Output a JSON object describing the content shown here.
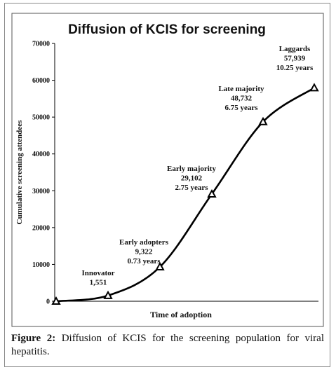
{
  "chart_data": {
    "type": "line",
    "title": "Diffusion of KCIS for screening",
    "xlabel": "Time of adoption",
    "ylabel": "Cumulative screening attendees",
    "ylim": [
      0,
      70000
    ],
    "yticks": [
      "0",
      "10000",
      "20000",
      "30000",
      "40000",
      "50000",
      "60000",
      "70000"
    ],
    "points": [
      {
        "y": 0,
        "lines": []
      },
      {
        "y": 1551,
        "lines": [
          "Innovator",
          "1,551"
        ]
      },
      {
        "y": 9322,
        "lines": [
          "Early adopters",
          "9,322",
          "0.73 years"
        ]
      },
      {
        "y": 29102,
        "lines": [
          "Early majority",
          "29,102",
          "2.75 years"
        ]
      },
      {
        "y": 48732,
        "lines": [
          "Late majority",
          "48,732",
          "6.75 years"
        ]
      },
      {
        "y": 57939,
        "lines": [
          "Laggards",
          "57,939",
          "10.25 years"
        ]
      }
    ]
  },
  "caption": {
    "label": "Figure 2:",
    "text": " Diffusion of KCIS for the screening population for viral hepatitis."
  }
}
